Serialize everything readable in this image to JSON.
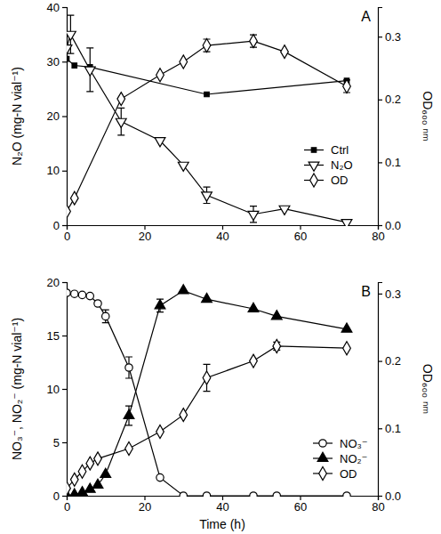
{
  "chart_data": [
    {
      "type": "line",
      "annotation": "A",
      "ylabel": "N₂O (mg-N vial⁻¹)",
      "y2label": "OD₆₀₀ ₙₘ",
      "xlim": [
        0,
        80
      ],
      "xticks": [
        0,
        20,
        40,
        60,
        80
      ],
      "ylim": [
        0,
        40
      ],
      "yticks": [
        0,
        10,
        20,
        30,
        40
      ],
      "y2lim": [
        0,
        0.347
      ],
      "y2ticks": [
        {
          "value": 0,
          "label": "0.0"
        },
        0.1,
        0.2,
        0.3
      ],
      "legend": "right",
      "series": [
        {
          "name": "Ctrl",
          "color": "#000000",
          "marker": "filled-square",
          "line_style": "solid",
          "x": [
            0,
            2,
            6,
            36,
            72
          ],
          "values": [
            30.5,
            29.3,
            29,
            24,
            26.5
          ]
        },
        {
          "name": "N₂O",
          "color": "#000000",
          "marker": "open-triangle-down",
          "line_style": "solid",
          "x": [
            0,
            1,
            6,
            14,
            24,
            30,
            36,
            48,
            56,
            72
          ],
          "values": [
            32.5,
            35,
            28.5,
            19,
            15.5,
            11,
            5.5,
            2,
            3,
            0.5
          ],
          "errors": [
            null,
            3.5,
            4,
            2.5,
            null,
            null,
            1.5,
            1.5,
            null,
            null
          ]
        },
        {
          "name": "OD",
          "color": "#000000",
          "marker": "open-diamond",
          "line_style": "solid",
          "axis": "y2",
          "x": [
            0,
            2,
            14,
            24,
            30,
            36,
            48,
            56,
            72
          ],
          "values": [
            0.022,
            0.043,
            0.201,
            0.239,
            0.26,
            0.286,
            0.293,
            0.276,
            0.221
          ],
          "errors": [
            null,
            null,
            null,
            null,
            null,
            0.01,
            0.01,
            null,
            0.01
          ]
        }
      ]
    },
    {
      "type": "line",
      "annotation": "B",
      "xlabel": "Time (h)",
      "ylabel": "NO₃⁻, NO₂⁻ (mg-N vial⁻¹)",
      "y2label": "OD₆₀₀ ₙₘ",
      "xlim": [
        0,
        80
      ],
      "xticks": [
        0,
        20,
        40,
        60,
        80
      ],
      "ylim": [
        0,
        20
      ],
      "yticks": [
        0,
        5,
        10,
        15,
        20
      ],
      "y2lim": [
        0,
        0.317
      ],
      "y2ticks": [
        {
          "value": 0,
          "label": "0.0"
        },
        0.1,
        0.2,
        0.3
      ],
      "legend": "lower right",
      "series": [
        {
          "name": "NO₃⁻",
          "color": "#000000",
          "marker": "open-circle",
          "line_style": "solid",
          "x": [
            0,
            2,
            4,
            6,
            8,
            10,
            16,
            24,
            30,
            36,
            48,
            54,
            72
          ],
          "values": [
            19,
            18.9,
            18.8,
            18.7,
            18,
            16.8,
            12,
            1.7,
            0,
            0,
            0,
            0,
            0
          ],
          "errors": [
            null,
            null,
            null,
            null,
            null,
            0.6,
            1,
            null,
            null,
            null,
            null,
            null,
            null
          ]
        },
        {
          "name": "NO₂⁻",
          "color": "#000000",
          "marker": "filled-triangle-up",
          "line_style": "solid",
          "x": [
            0,
            2,
            4,
            6,
            8,
            10,
            16,
            24,
            30,
            36,
            48,
            54,
            72
          ],
          "values": [
            0,
            0.1,
            0.3,
            0.6,
            1,
            2,
            7.5,
            17.8,
            19.2,
            18.4,
            17.5,
            16.8,
            15.6
          ],
          "errors": [
            null,
            null,
            null,
            null,
            null,
            null,
            0.9,
            0.6,
            null,
            null,
            null,
            null,
            null
          ]
        },
        {
          "name": "OD",
          "color": "#000000",
          "marker": "open-diamond",
          "line_style": "solid",
          "axis": "y2",
          "x": [
            0,
            2,
            4,
            6,
            8,
            16,
            24,
            30,
            36,
            48,
            54,
            72
          ],
          "values": [
            0.011,
            0.024,
            0.036,
            0.048,
            0.055,
            0.07,
            0.095,
            0.12,
            0.175,
            0.2,
            0.222,
            0.219
          ],
          "errors": [
            null,
            null,
            null,
            null,
            null,
            null,
            null,
            null,
            0.02,
            null,
            0.006,
            null
          ]
        }
      ]
    }
  ]
}
